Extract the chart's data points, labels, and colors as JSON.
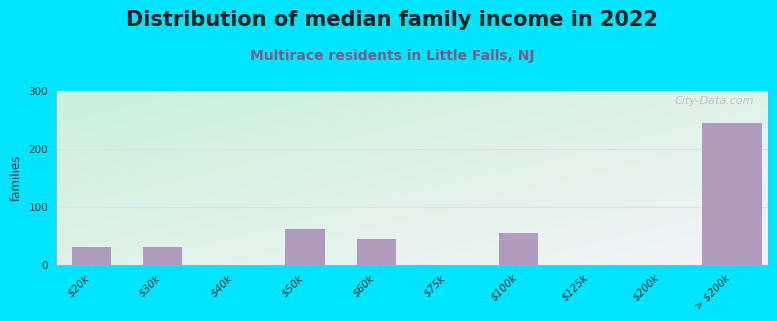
{
  "title": "Distribution of median family income in 2022",
  "subtitle": "Multirace residents in Little Falls, NJ",
  "categories": [
    "$20k",
    "$30k",
    "$40k",
    "$50k",
    "$60k",
    "$75k",
    "$100k",
    "$125k",
    "$200k",
    "> $200k"
  ],
  "values": [
    30,
    30,
    0,
    62,
    45,
    0,
    55,
    0,
    0,
    245
  ],
  "bar_color": "#b09abe",
  "background_color": "#00e5ff",
  "ylabel": "families",
  "ylim": [
    0,
    300
  ],
  "yticks": [
    0,
    100,
    200,
    300
  ],
  "watermark": "City-Data.com",
  "title_fontsize": 15,
  "subtitle_fontsize": 10,
  "tick_fontsize": 7.5,
  "grid_color": "#e0dde8",
  "plot_bg_left": "#c8f0d8",
  "plot_bg_right": "#f0f0f8"
}
